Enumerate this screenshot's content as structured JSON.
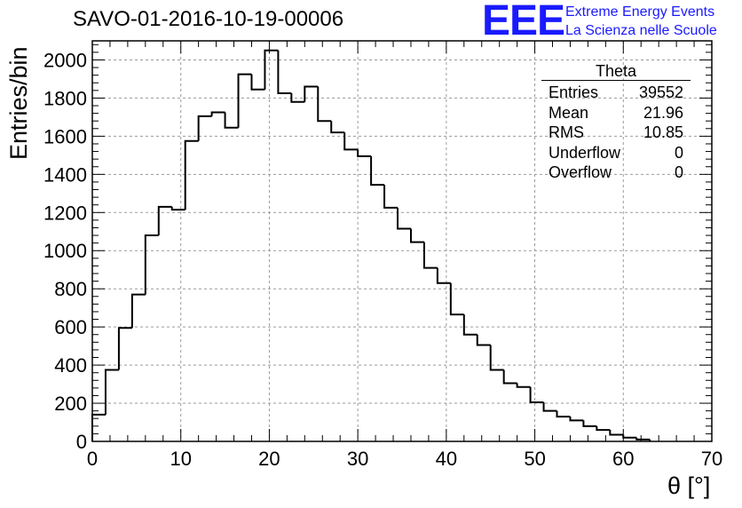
{
  "title": "SAVO-01-2016-10-19-00006",
  "logo": {
    "text": "EEE",
    "line1": "Extreme Energy Events",
    "line2": "La Scienza nelle Scuole",
    "color": "#1a1aff"
  },
  "stats": {
    "title": "Theta",
    "rows": [
      {
        "label": "Entries",
        "value": "39552"
      },
      {
        "label": "Mean",
        "value": "21.96"
      },
      {
        "label": "RMS",
        "value": "10.85"
      },
      {
        "label": "Underflow",
        "value": "0"
      },
      {
        "label": "Overflow",
        "value": "0"
      }
    ]
  },
  "chart_data": {
    "type": "bar",
    "title": "SAVO-01-2016-10-19-00006",
    "xlabel": "θ [°]",
    "ylabel": "Entries/bin",
    "xlim": [
      0,
      70
    ],
    "ylim": [
      0,
      2100
    ],
    "grid": true,
    "x_ticks": [
      0,
      10,
      20,
      30,
      40,
      50,
      60,
      70
    ],
    "y_ticks": [
      0,
      200,
      400,
      600,
      800,
      1000,
      1200,
      1400,
      1600,
      1800,
      2000
    ],
    "bin_width": 1.5,
    "bin_edges_start": 0,
    "values": [
      140,
      375,
      595,
      770,
      1080,
      1230,
      1215,
      1575,
      1705,
      1725,
      1645,
      1925,
      1845,
      2050,
      1825,
      1780,
      1860,
      1680,
      1620,
      1530,
      1495,
      1345,
      1225,
      1115,
      1045,
      910,
      830,
      665,
      560,
      505,
      375,
      305,
      285,
      205,
      160,
      130,
      110,
      80,
      60,
      35,
      20,
      10
    ]
  }
}
